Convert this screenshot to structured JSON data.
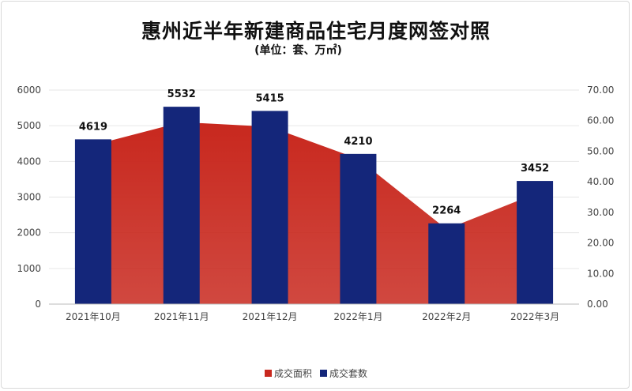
{
  "title": "惠州近半年新建商品住宅月度网签对照",
  "subtitle": "(单位：套、万㎡)",
  "colors": {
    "bars": "#14267a",
    "area": "#c8281e",
    "grid": "#e6e6e6",
    "axis": "#bbbbbb"
  },
  "legend": {
    "area_label": "成交面积",
    "bar_label": "成交套数"
  },
  "chart_data": {
    "type": "bar",
    "categories": [
      "2021年10月",
      "2021年11月",
      "2021年12月",
      "2022年1月",
      "2022年2月",
      "2022年3月"
    ],
    "series": [
      {
        "name": "成交套数",
        "type": "bar",
        "axis": "left",
        "values": [
          4619,
          5532,
          5415,
          4210,
          2264,
          3452
        ]
      },
      {
        "name": "成交面积",
        "type": "area",
        "axis": "right",
        "values": [
          52.0,
          59.5,
          58.0,
          47.5,
          24.5,
          36.0
        ]
      }
    ],
    "y_left": {
      "lim": [
        0,
        6000
      ],
      "ticks": [
        "0",
        "1000",
        "2000",
        "3000",
        "4000",
        "5000",
        "6000"
      ]
    },
    "y_right": {
      "lim": [
        0,
        70
      ],
      "ticks": [
        "0.00",
        "10.00",
        "20.00",
        "30.00",
        "40.00",
        "50.00",
        "60.00",
        "70.00"
      ]
    },
    "grid": true,
    "legend_position": "bottom-center"
  }
}
